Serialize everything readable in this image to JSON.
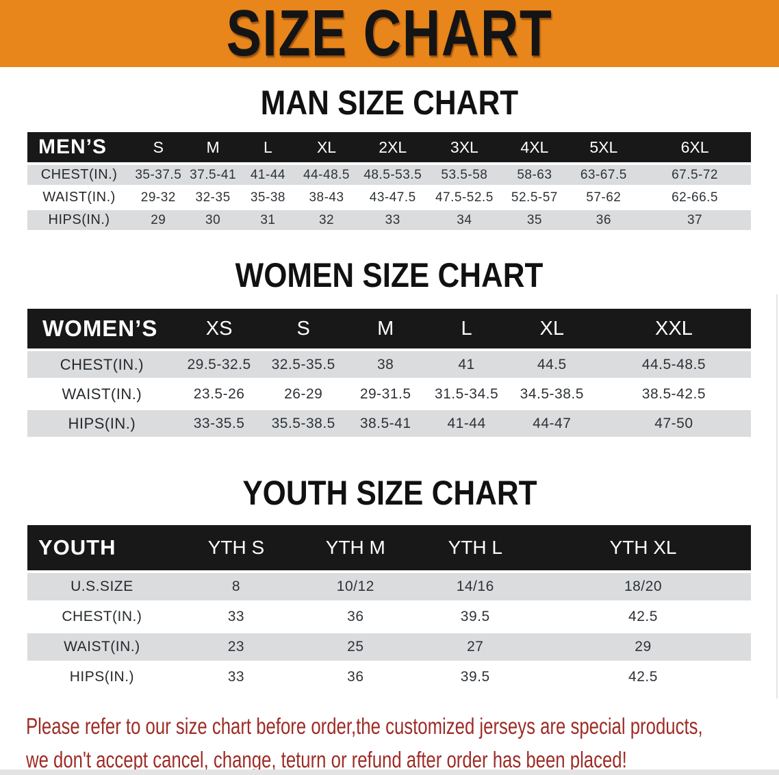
{
  "banner": {
    "title": "SIZE CHART"
  },
  "sections": [
    {
      "title": "MAN SIZE CHART",
      "table": {
        "header_label": "MEN’S",
        "sizes": [
          "S",
          "M",
          "L",
          "XL",
          "2XL",
          "3XL",
          "4XL",
          "5XL",
          "6XL"
        ],
        "rows": [
          {
            "label": "CHEST(IN.)",
            "values": [
              "35-37.5",
              "37.5-41",
              "41-44",
              "44-48.5",
              "48.5-53.5",
              "53.5-58",
              "58-63",
              "63-67.5",
              "67.5-72"
            ]
          },
          {
            "label": "WAIST(IN.)",
            "values": [
              "29-32",
              "32-35",
              "35-38",
              "38-43",
              "43-47.5",
              "47.5-52.5",
              "52.5-57",
              "57-62",
              "62-66.5"
            ]
          },
          {
            "label": "HIPS(IN.)",
            "values": [
              "29",
              "30",
              "31",
              "32",
              "33",
              "34",
              "35",
              "36",
              "37"
            ]
          }
        ]
      }
    },
    {
      "title": "WOMEN SIZE CHART",
      "table": {
        "header_label": "WOMEN’S",
        "sizes": [
          "XS",
          "S",
          "M",
          "L",
          "XL",
          "XXL"
        ],
        "rows": [
          {
            "label": "CHEST(IN.)",
            "values": [
              "29.5-32.5",
              "32.5-35.5",
              "38",
              "41",
              "44.5",
              "44.5-48.5"
            ]
          },
          {
            "label": "WAIST(IN.)",
            "values": [
              "23.5-26",
              "26-29",
              "29-31.5",
              "31.5-34.5",
              "34.5-38.5",
              "38.5-42.5"
            ]
          },
          {
            "label": "HIPS(IN.)",
            "values": [
              "33-35.5",
              "35.5-38.5",
              "38.5-41",
              "41-44",
              "44-47",
              "47-50"
            ]
          }
        ]
      }
    },
    {
      "title": "YOUTH SIZE CHART",
      "table": {
        "header_label": "YOUTH",
        "sizes": [
          "YTH S",
          "YTH M",
          "YTH L",
          "YTH XL"
        ],
        "rows": [
          {
            "label": "U.S.SIZE",
            "values": [
              "8",
              "10/12",
              "14/16",
              "18/20"
            ]
          },
          {
            "label": "CHEST(IN.)",
            "values": [
              "33",
              "36",
              "39.5",
              "42.5"
            ]
          },
          {
            "label": "WAIST(IN.)",
            "values": [
              "23",
              "25",
              "27",
              "29"
            ]
          },
          {
            "label": "HIPS(IN.)",
            "values": [
              "33",
              "36",
              "39.5",
              "42.5"
            ]
          }
        ]
      }
    }
  ],
  "disclaimer": {
    "line1": "Please refer to our size chart before order,the customized jerseys are special products,",
    "line2": "we don't accept cancel, change, teturn or refund after order has been placed!"
  },
  "colors": {
    "banner_bg": "#E8861B",
    "table_header_bg": "#181818",
    "row_alt_bg": "#DADCDE",
    "disclaimer_text": "#9E2C26"
  }
}
